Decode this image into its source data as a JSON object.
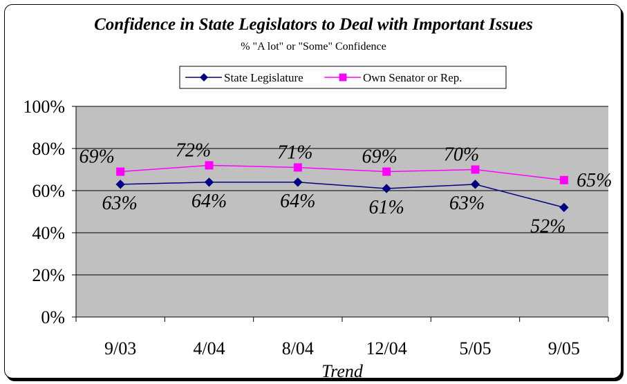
{
  "chart_data": {
    "type": "line",
    "title": "Confidence in State Legislators to Deal with Important Issues",
    "subtitle": "% \"A lot\" or \"Some\" Confidence",
    "xlabel": "Trend",
    "ylabel": "",
    "categories": [
      "9/03",
      "4/04",
      "8/04",
      "12/04",
      "5/05",
      "9/05"
    ],
    "ylim": [
      0,
      100
    ],
    "yticks": [
      "0%",
      "20%",
      "40%",
      "60%",
      "80%",
      "100%"
    ],
    "grid": true,
    "legend_position": "top",
    "series": [
      {
        "name": "State Legislature",
        "values": [
          63,
          64,
          64,
          61,
          63,
          52
        ],
        "labels": [
          "63%",
          "64%",
          "64%",
          "61%",
          "63%",
          "52%"
        ],
        "color": "#000080",
        "marker": "diamond"
      },
      {
        "name": "Own Senator or Rep.",
        "values": [
          69,
          72,
          71,
          69,
          70,
          65
        ],
        "labels": [
          "69%",
          "72%",
          "71%",
          "69%",
          "70%",
          "65%"
        ],
        "color": "#ff00ff",
        "marker": "square"
      }
    ]
  },
  "colors": {
    "plot_background": "#c0c0c0",
    "gridline": "#000000"
  }
}
